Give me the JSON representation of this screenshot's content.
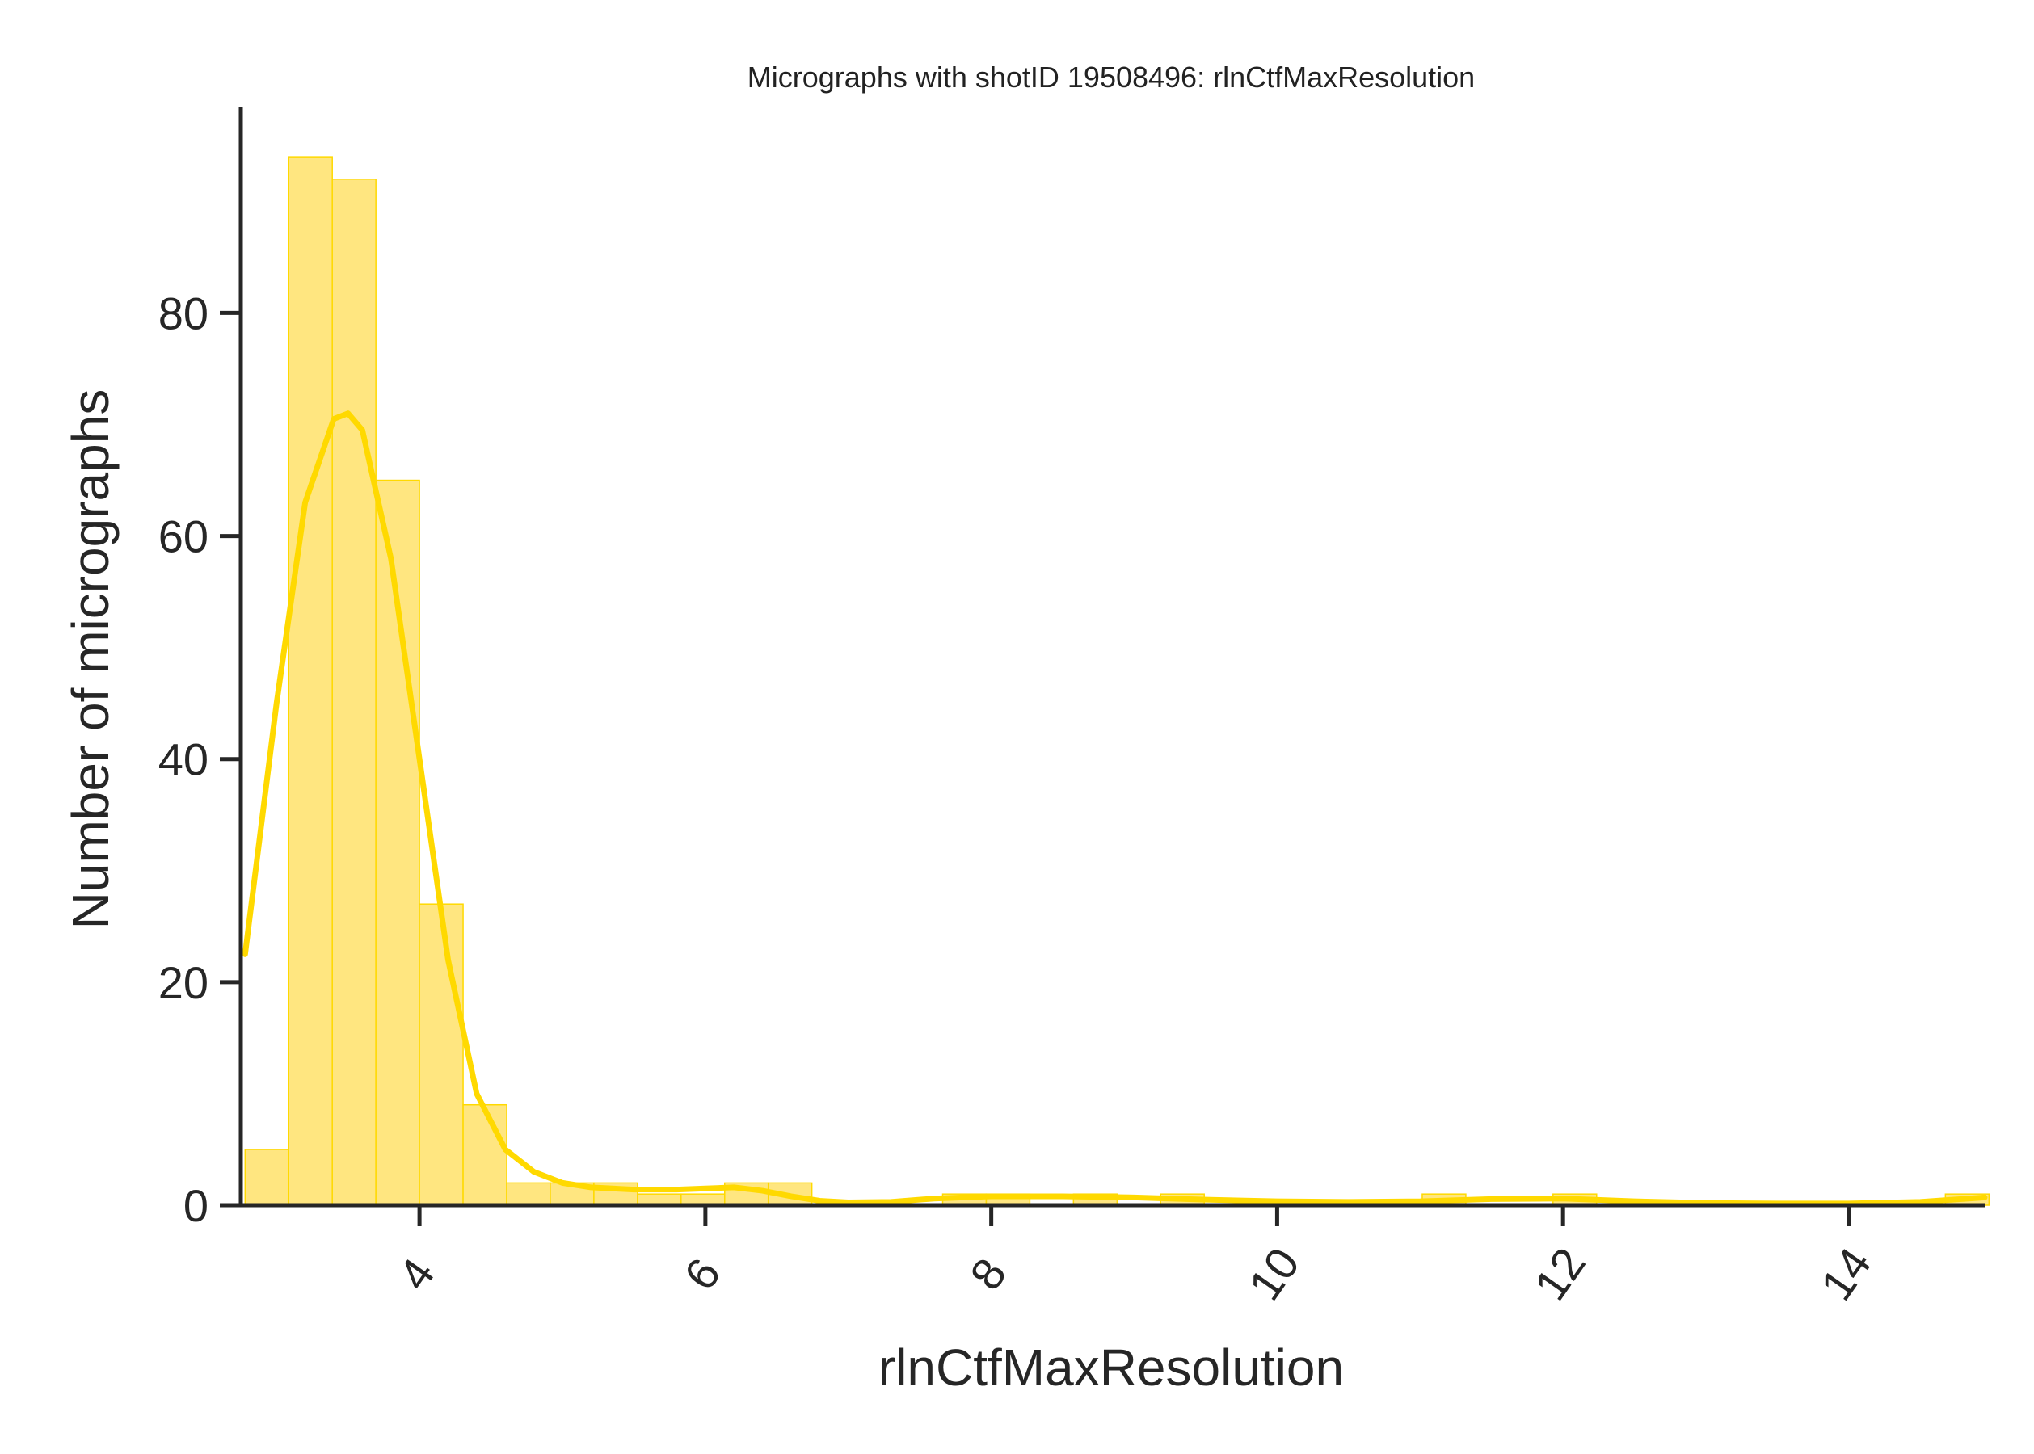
{
  "chart_data": {
    "type": "bar",
    "subtype": "histogram-with-kde",
    "title": "Micrographs with shotID 19508496: rlnCtfMaxResolution",
    "xlabel": "rlnCtfMaxResolution",
    "ylabel": "Number of micrographs",
    "xlim": [
      2.75,
      14.95
    ],
    "ylim": [
      0,
      98.5
    ],
    "xticks": [
      4,
      6,
      8,
      10,
      12,
      14
    ],
    "xtick_labels": [
      "4",
      "6",
      "8",
      "10",
      "12",
      "14"
    ],
    "xtick_rotation_deg": -55,
    "yticks": [
      0,
      20,
      40,
      60,
      80
    ],
    "ytick_labels": [
      "0",
      "20",
      "40",
      "60",
      "80"
    ],
    "grid": false,
    "colors": {
      "bar_fill": "#ffe680",
      "bar_edge": "#ffd900",
      "kde_line": "#ffd900",
      "axes": "#262626"
    },
    "histogram": {
      "bin_edges": [
        2.78,
        3.085,
        3.39,
        3.695,
        4.0,
        4.305,
        4.61,
        4.915,
        5.22,
        5.525,
        5.83,
        6.135,
        6.44,
        6.745,
        7.05,
        7.355,
        7.66,
        7.965,
        8.27,
        8.575,
        8.88,
        9.185,
        9.49,
        9.795,
        10.1,
        10.405,
        10.71,
        11.015,
        11.32,
        11.625,
        11.93,
        12.235,
        12.54,
        12.845,
        13.15,
        13.455,
        13.76,
        14.065,
        14.37,
        14.675,
        14.98
      ],
      "counts": [
        5,
        94,
        92,
        65,
        27,
        9,
        2,
        2,
        2,
        1,
        1,
        2,
        2,
        0,
        0,
        0,
        1,
        1,
        0,
        1,
        0,
        1,
        0,
        0,
        0,
        0,
        0,
        1,
        0,
        0,
        1,
        0,
        0,
        0,
        0,
        0,
        0,
        0,
        0,
        1
      ]
    },
    "kde": {
      "x": [
        2.78,
        3.0,
        3.2,
        3.4,
        3.5,
        3.6,
        3.8,
        4.0,
        4.2,
        4.4,
        4.6,
        4.8,
        5.0,
        5.2,
        5.5,
        5.8,
        6.0,
        6.2,
        6.4,
        6.6,
        6.8,
        7.0,
        7.3,
        7.6,
        8.0,
        8.5,
        9.0,
        9.5,
        10.0,
        10.5,
        11.0,
        11.5,
        12.0,
        12.5,
        13.0,
        13.5,
        14.0,
        14.5,
        14.95
      ],
      "y": [
        22.5,
        45,
        63,
        70.5,
        71,
        69.5,
        58,
        40,
        22,
        10,
        5,
        3,
        2,
        1.6,
        1.4,
        1.4,
        1.5,
        1.6,
        1.3,
        0.8,
        0.4,
        0.25,
        0.3,
        0.6,
        0.8,
        0.8,
        0.7,
        0.5,
        0.35,
        0.3,
        0.35,
        0.55,
        0.6,
        0.35,
        0.2,
        0.15,
        0.15,
        0.3,
        0.7
      ]
    }
  }
}
